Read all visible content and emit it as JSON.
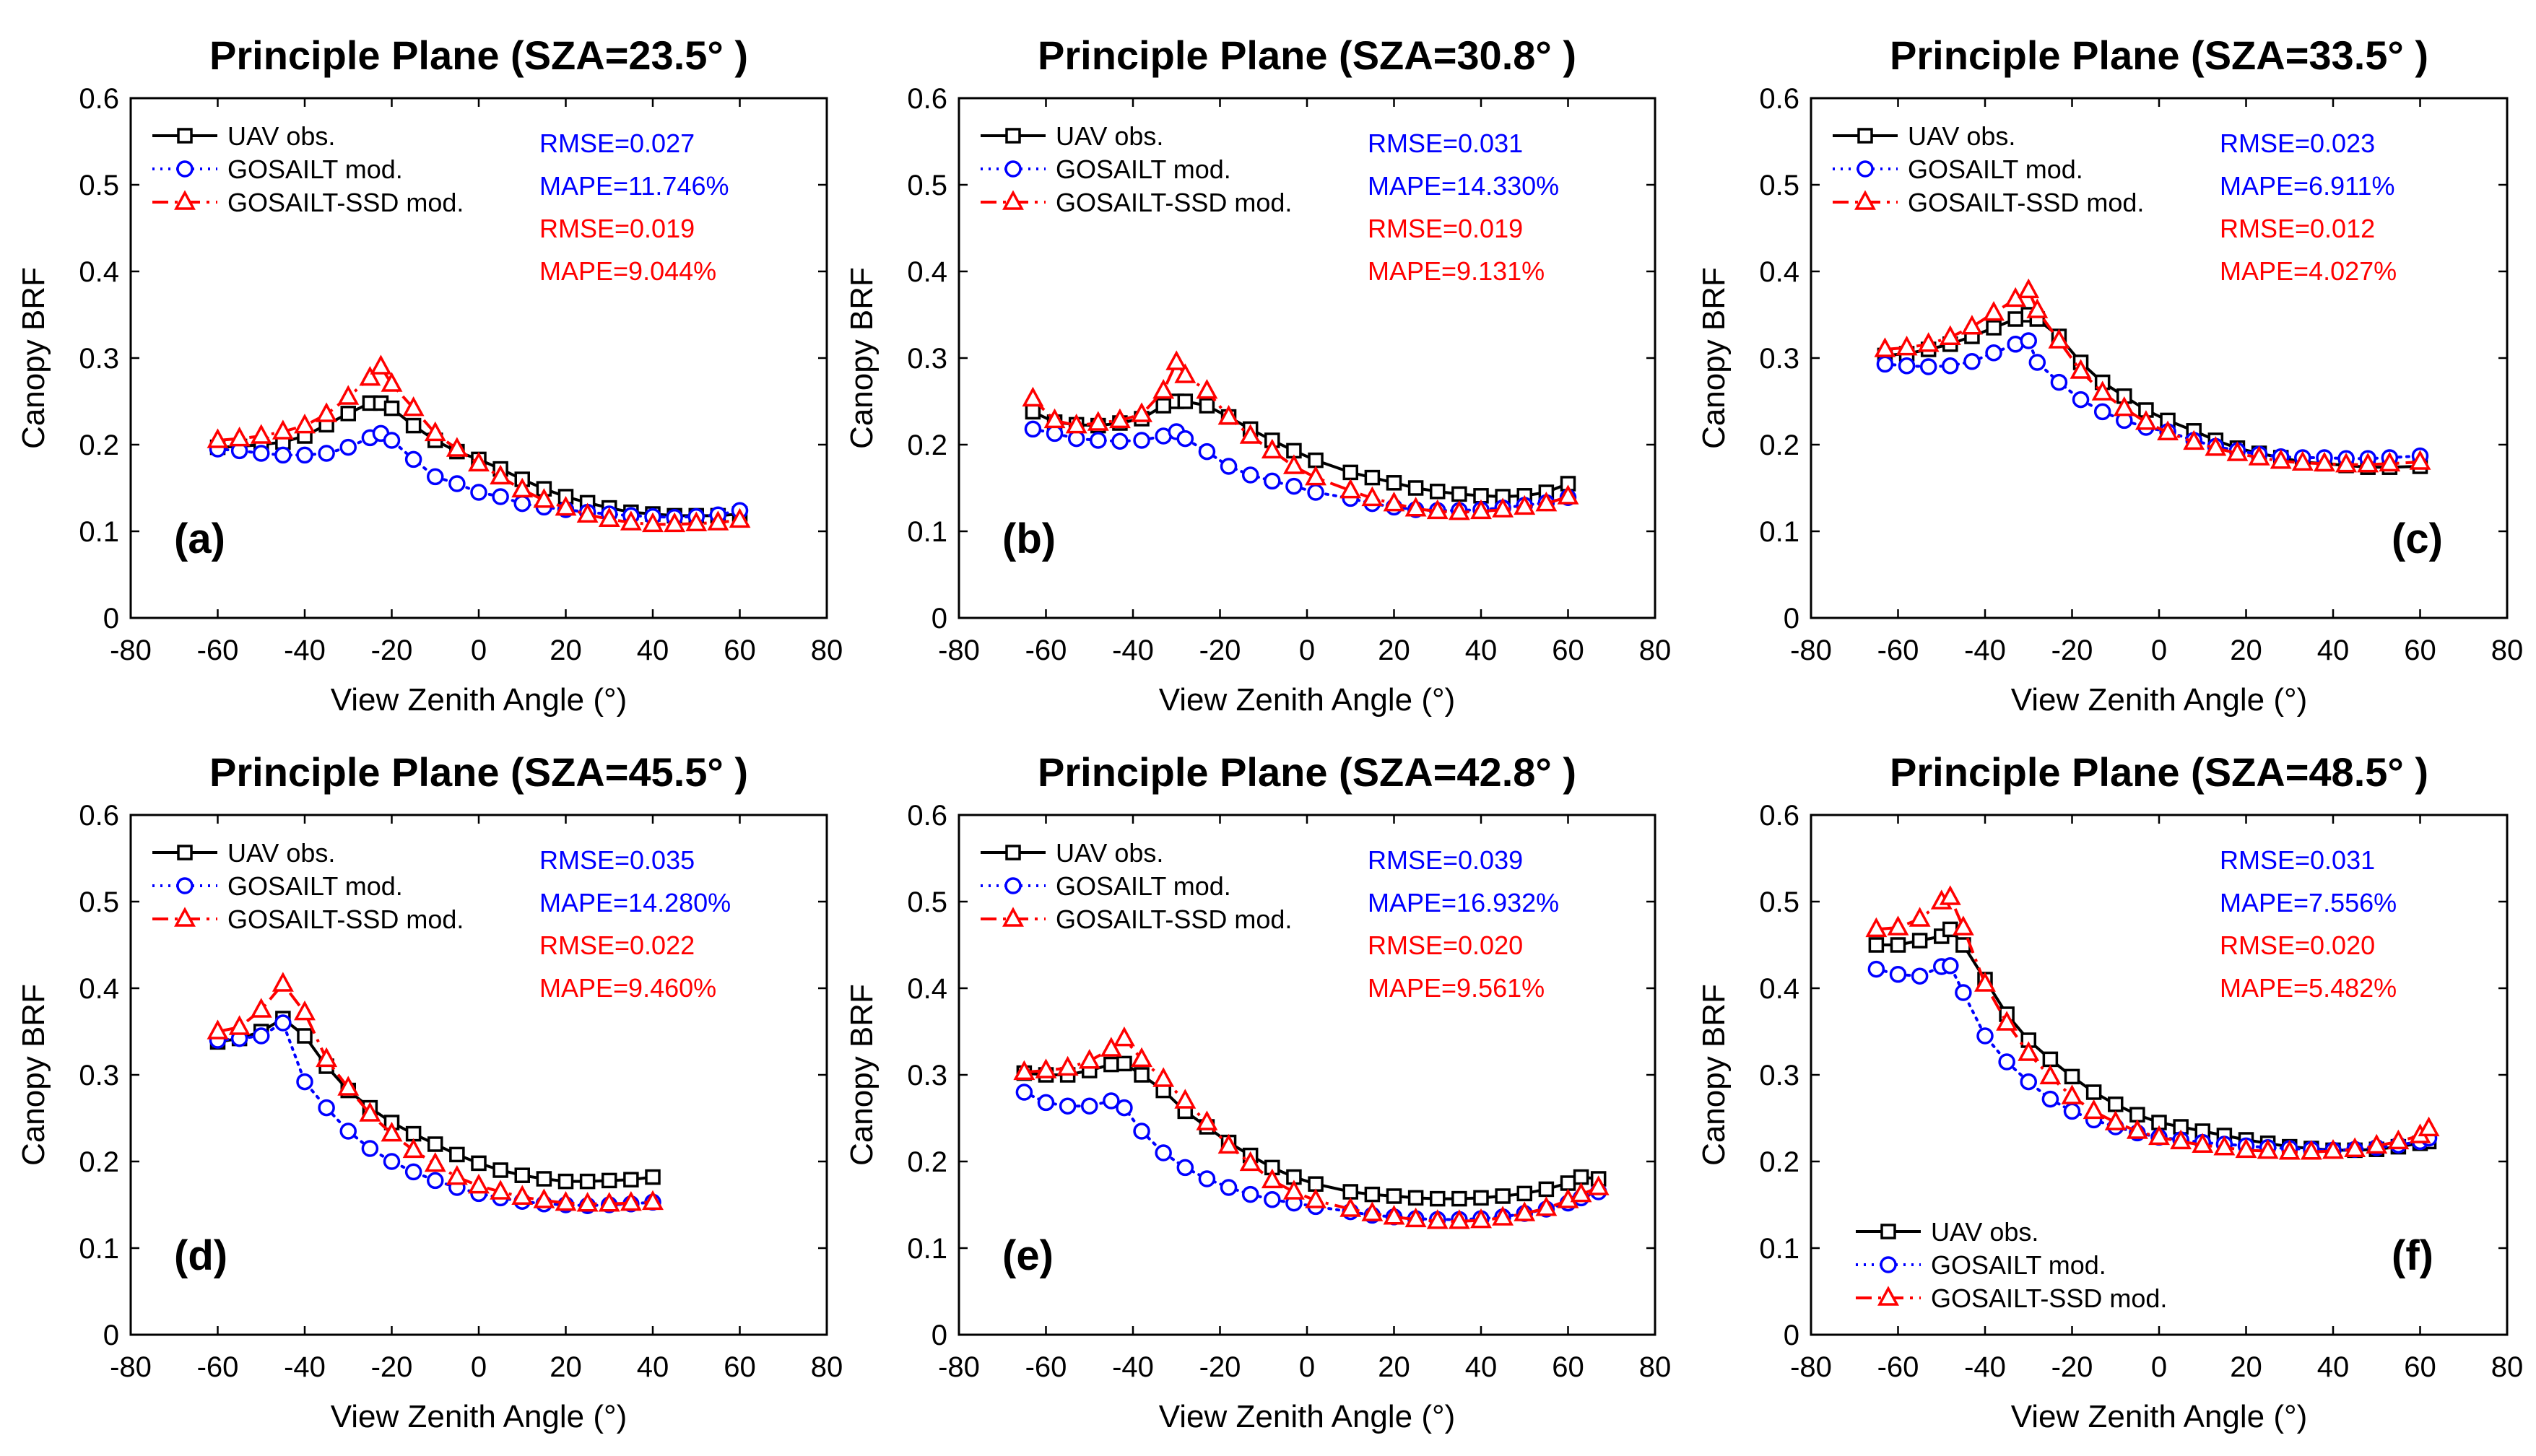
{
  "figure": {
    "series_styles": [
      {
        "key": "obs",
        "color": "#000000",
        "marker": "square",
        "dash": ""
      },
      {
        "key": "gos",
        "color": "#0000ff",
        "marker": "circle",
        "dash": "3 8"
      },
      {
        "key": "ssd",
        "color": "#ff0000",
        "marker": "triangle",
        "dash": "22 9 4 9"
      }
    ]
  },
  "chart_data": [
    {
      "type": "line",
      "panel": "(a)",
      "title": "Principle Plane (SZA=23.5° )",
      "xlabel": "View Zenith Angle (°)",
      "ylabel": "Canopy BRF",
      "xlim": [
        -80,
        80
      ],
      "ylim": [
        0,
        0.6
      ],
      "xticks": [
        "-80",
        "-60",
        "-40",
        "-20",
        "0",
        "20",
        "40",
        "60",
        "80"
      ],
      "yticks": [
        "0",
        "0.1",
        "0.2",
        "0.3",
        "0.4",
        "0.5",
        "0.6"
      ],
      "legend": [
        "UAV obs.",
        "GOSAILT mod.",
        "GOSAILT-SSD mod."
      ],
      "legend_position": "top-left",
      "stats": [
        {
          "text": "RMSE=0.027",
          "color": "#0000ff"
        },
        {
          "text": "MAPE=11.746%",
          "color": "#0000ff"
        },
        {
          "text": "RMSE=0.019",
          "color": "#ff0000"
        },
        {
          "text": "MAPE=9.044%",
          "color": "#ff0000"
        }
      ],
      "x": [
        -60,
        -55,
        -50,
        -45,
        -40,
        -35,
        -30,
        -25,
        -22.5,
        -20,
        -15,
        -10,
        -5,
        0,
        5,
        10,
        15,
        20,
        25,
        30,
        35,
        40,
        45,
        50,
        55,
        60
      ],
      "series": [
        {
          "name": "UAV obs.",
          "values": [
            0.197,
            0.198,
            0.2,
            0.203,
            0.21,
            0.223,
            0.236,
            0.248,
            0.248,
            0.242,
            0.222,
            0.205,
            0.192,
            0.183,
            0.172,
            0.16,
            0.149,
            0.14,
            0.133,
            0.127,
            0.122,
            0.12,
            0.118,
            0.118,
            0.118,
            0.12
          ]
        },
        {
          "name": "GOSAILT mod.",
          "values": [
            0.195,
            0.193,
            0.19,
            0.188,
            0.188,
            0.19,
            0.197,
            0.208,
            0.213,
            0.205,
            0.183,
            0.163,
            0.155,
            0.145,
            0.14,
            0.132,
            0.128,
            0.125,
            0.122,
            0.12,
            0.118,
            0.117,
            0.116,
            0.117,
            0.119,
            0.124
          ]
        },
        {
          "name": "GOSAILT-SSD mod.",
          "values": [
            0.205,
            0.207,
            0.21,
            0.215,
            0.222,
            0.235,
            0.255,
            0.277,
            0.29,
            0.27,
            0.242,
            0.213,
            0.195,
            0.178,
            0.163,
            0.148,
            0.136,
            0.127,
            0.119,
            0.114,
            0.11,
            0.108,
            0.108,
            0.109,
            0.11,
            0.113
          ]
        }
      ]
    },
    {
      "type": "line",
      "panel": "(b)",
      "title": "Principle Plane (SZA=30.8° )",
      "xlabel": "View Zenith Angle (°)",
      "ylabel": "Canopy BRF",
      "xlim": [
        -80,
        80
      ],
      "ylim": [
        0,
        0.6
      ],
      "xticks": [
        "-80",
        "-60",
        "-40",
        "-20",
        "0",
        "20",
        "40",
        "60",
        "80"
      ],
      "yticks": [
        "0",
        "0.1",
        "0.2",
        "0.3",
        "0.4",
        "0.5",
        "0.6"
      ],
      "legend": [
        "UAV obs.",
        "GOSAILT mod.",
        "GOSAILT-SSD mod."
      ],
      "legend_position": "top-left",
      "stats": [
        {
          "text": "RMSE=0.031",
          "color": "#0000ff"
        },
        {
          "text": "MAPE=14.330%",
          "color": "#0000ff"
        },
        {
          "text": "RMSE=0.019",
          "color": "#ff0000"
        },
        {
          "text": "MAPE=9.131%",
          "color": "#ff0000"
        }
      ],
      "x": [
        -63,
        -58,
        -53,
        -48,
        -43,
        -38,
        -33,
        -30,
        -28,
        -23,
        -18,
        -13,
        -8,
        -3,
        2,
        10,
        15,
        20,
        25,
        30,
        35,
        40,
        45,
        50,
        55,
        60
      ],
      "series": [
        {
          "name": "UAV obs.",
          "values": [
            0.238,
            0.226,
            0.223,
            0.222,
            0.225,
            0.23,
            0.245,
            0.25,
            0.25,
            0.245,
            0.232,
            0.218,
            0.205,
            0.193,
            0.182,
            0.168,
            0.162,
            0.156,
            0.15,
            0.146,
            0.143,
            0.141,
            0.14,
            0.141,
            0.145,
            0.155
          ]
        },
        {
          "name": "GOSAILT mod.",
          "values": [
            0.218,
            0.213,
            0.207,
            0.205,
            0.204,
            0.205,
            0.21,
            0.215,
            0.207,
            0.192,
            0.175,
            0.165,
            0.158,
            0.152,
            0.145,
            0.138,
            0.132,
            0.128,
            0.125,
            0.124,
            0.124,
            0.125,
            0.127,
            0.13,
            0.133,
            0.139
          ]
        },
        {
          "name": "GOSAILT-SSD mod.",
          "values": [
            0.253,
            0.228,
            0.222,
            0.225,
            0.228,
            0.235,
            0.262,
            0.295,
            0.28,
            0.262,
            0.232,
            0.21,
            0.193,
            0.175,
            0.162,
            0.147,
            0.138,
            0.132,
            0.126,
            0.123,
            0.122,
            0.123,
            0.125,
            0.128,
            0.132,
            0.14
          ]
        }
      ]
    },
    {
      "type": "line",
      "panel": "(c)",
      "title": "Principle Plane (SZA=33.5° )",
      "xlabel": "View Zenith Angle (°)",
      "ylabel": "Canopy BRF",
      "xlim": [
        -80,
        80
      ],
      "ylim": [
        0,
        0.6
      ],
      "xticks": [
        "-80",
        "-60",
        "-40",
        "-20",
        "0",
        "20",
        "40",
        "60",
        "80"
      ],
      "yticks": [
        "0",
        "0.1",
        "0.2",
        "0.3",
        "0.4",
        "0.5",
        "0.6"
      ],
      "legend": [
        "UAV obs.",
        "GOSAILT mod.",
        "GOSAILT-SSD mod."
      ],
      "legend_position": "top-left",
      "stats": [
        {
          "text": "RMSE=0.023",
          "color": "#0000ff"
        },
        {
          "text": "MAPE=6.911%",
          "color": "#0000ff"
        },
        {
          "text": "RMSE=0.012",
          "color": "#ff0000"
        },
        {
          "text": "MAPE=4.027%",
          "color": "#ff0000"
        }
      ],
      "x": [
        -63,
        -58,
        -53,
        -48,
        -43,
        -38,
        -33,
        -30,
        -28,
        -23,
        -18,
        -13,
        -8,
        -3,
        2,
        8,
        13,
        18,
        23,
        28,
        33,
        38,
        43,
        48,
        53,
        60
      ],
      "series": [
        {
          "name": "UAV obs.",
          "values": [
            0.303,
            0.305,
            0.31,
            0.316,
            0.325,
            0.335,
            0.345,
            0.35,
            0.345,
            0.325,
            0.295,
            0.272,
            0.256,
            0.24,
            0.228,
            0.216,
            0.205,
            0.196,
            0.19,
            0.185,
            0.18,
            0.178,
            0.176,
            0.174,
            0.174,
            0.175
          ]
        },
        {
          "name": "GOSAILT mod.",
          "values": [
            0.293,
            0.291,
            0.29,
            0.291,
            0.296,
            0.306,
            0.316,
            0.32,
            0.295,
            0.272,
            0.252,
            0.238,
            0.228,
            0.22,
            0.215,
            0.205,
            0.198,
            0.193,
            0.189,
            0.186,
            0.185,
            0.185,
            0.184,
            0.184,
            0.185,
            0.187
          ]
        },
        {
          "name": "GOSAILT-SSD mod.",
          "values": [
            0.31,
            0.312,
            0.316,
            0.324,
            0.336,
            0.352,
            0.368,
            0.378,
            0.355,
            0.32,
            0.285,
            0.26,
            0.242,
            0.226,
            0.214,
            0.203,
            0.196,
            0.19,
            0.185,
            0.181,
            0.179,
            0.178,
            0.177,
            0.177,
            0.178,
            0.18
          ]
        }
      ]
    },
    {
      "type": "line",
      "panel": "(d)",
      "title": "Principle Plane (SZA=45.5° )",
      "xlabel": "View Zenith Angle (°)",
      "ylabel": "Canopy BRF",
      "xlim": [
        -80,
        80
      ],
      "ylim": [
        0,
        0.6
      ],
      "xticks": [
        "-80",
        "-60",
        "-40",
        "-20",
        "0",
        "20",
        "40",
        "60",
        "80"
      ],
      "yticks": [
        "0",
        "0.1",
        "0.2",
        "0.3",
        "0.4",
        "0.5",
        "0.6"
      ],
      "legend": [
        "UAV obs.",
        "GOSAILT mod.",
        "GOSAILT-SSD mod."
      ],
      "legend_position": "top-left",
      "stats": [
        {
          "text": "RMSE=0.035",
          "color": "#0000ff"
        },
        {
          "text": "MAPE=14.280%",
          "color": "#0000ff"
        },
        {
          "text": "RMSE=0.022",
          "color": "#ff0000"
        },
        {
          "text": "MAPE=9.460%",
          "color": "#ff0000"
        }
      ],
      "x": [
        -60,
        -55,
        -50,
        -45,
        -40,
        -35,
        -30,
        -25,
        -20,
        -15,
        -10,
        -5,
        0,
        5,
        10,
        15,
        20,
        25,
        30,
        35,
        40
      ],
      "series": [
        {
          "name": "UAV obs.",
          "values": [
            0.338,
            0.342,
            0.35,
            0.365,
            0.345,
            0.31,
            0.282,
            0.262,
            0.245,
            0.232,
            0.22,
            0.208,
            0.198,
            0.19,
            0.184,
            0.18,
            0.177,
            0.177,
            0.178,
            0.179,
            0.182
          ]
        },
        {
          "name": "GOSAILT mod.",
          "values": [
            0.34,
            0.342,
            0.345,
            0.36,
            0.292,
            0.262,
            0.235,
            0.215,
            0.2,
            0.188,
            0.178,
            0.17,
            0.163,
            0.158,
            0.154,
            0.151,
            0.15,
            0.149,
            0.15,
            0.151,
            0.153
          ]
        },
        {
          "name": "GOSAILT-SSD mod.",
          "values": [
            0.35,
            0.355,
            0.375,
            0.405,
            0.372,
            0.318,
            0.285,
            0.255,
            0.232,
            0.213,
            0.197,
            0.182,
            0.172,
            0.165,
            0.159,
            0.155,
            0.152,
            0.151,
            0.151,
            0.152,
            0.153
          ]
        }
      ]
    },
    {
      "type": "line",
      "panel": "(e)",
      "title": "Principle Plane (SZA=42.8° )",
      "xlabel": "View Zenith Angle (°)",
      "ylabel": "Canopy BRF",
      "xlim": [
        -80,
        80
      ],
      "ylim": [
        0,
        0.6
      ],
      "xticks": [
        "-80",
        "-60",
        "-40",
        "-20",
        "0",
        "20",
        "40",
        "60",
        "80"
      ],
      "yticks": [
        "0",
        "0.1",
        "0.2",
        "0.3",
        "0.4",
        "0.5",
        "0.6"
      ],
      "legend": [
        "UAV obs.",
        "GOSAILT mod.",
        "GOSAILT-SSD mod."
      ],
      "legend_position": "top-left",
      "stats": [
        {
          "text": "RMSE=0.039",
          "color": "#0000ff"
        },
        {
          "text": "MAPE=16.932%",
          "color": "#0000ff"
        },
        {
          "text": "RMSE=0.020",
          "color": "#ff0000"
        },
        {
          "text": "MAPE=9.561%",
          "color": "#ff0000"
        }
      ],
      "x": [
        -65,
        -60,
        -55,
        -50,
        -45,
        -42,
        -38,
        -33,
        -28,
        -23,
        -18,
        -13,
        -8,
        -3,
        2,
        10,
        15,
        20,
        25,
        30,
        35,
        40,
        45,
        50,
        55,
        60,
        63,
        67
      ],
      "series": [
        {
          "name": "UAV obs.",
          "values": [
            0.302,
            0.3,
            0.3,
            0.305,
            0.312,
            0.313,
            0.3,
            0.282,
            0.258,
            0.24,
            0.222,
            0.207,
            0.193,
            0.182,
            0.174,
            0.165,
            0.162,
            0.16,
            0.158,
            0.157,
            0.157,
            0.158,
            0.16,
            0.163,
            0.168,
            0.175,
            0.182,
            0.18
          ]
        },
        {
          "name": "GOSAILT mod.",
          "values": [
            0.28,
            0.268,
            0.264,
            0.264,
            0.27,
            0.262,
            0.235,
            0.21,
            0.193,
            0.18,
            0.17,
            0.162,
            0.156,
            0.152,
            0.148,
            0.142,
            0.138,
            0.136,
            0.134,
            0.133,
            0.133,
            0.134,
            0.136,
            0.14,
            0.145,
            0.152,
            0.158,
            0.165
          ]
        },
        {
          "name": "GOSAILT-SSD mod.",
          "values": [
            0.303,
            0.305,
            0.308,
            0.316,
            0.33,
            0.342,
            0.318,
            0.295,
            0.27,
            0.245,
            0.218,
            0.198,
            0.178,
            0.165,
            0.155,
            0.145,
            0.14,
            0.136,
            0.133,
            0.131,
            0.131,
            0.132,
            0.135,
            0.14,
            0.146,
            0.155,
            0.162,
            0.17
          ]
        }
      ]
    },
    {
      "type": "line",
      "panel": "(f)",
      "title": "Principle Plane (SZA=48.5° )",
      "xlabel": "View Zenith Angle (°)",
      "ylabel": "Canopy BRF",
      "xlim": [
        -80,
        80
      ],
      "ylim": [
        0,
        0.6
      ],
      "xticks": [
        "-80",
        "-60",
        "-40",
        "-20",
        "0",
        "20",
        "40",
        "60",
        "80"
      ],
      "yticks": [
        "0",
        "0.1",
        "0.2",
        "0.3",
        "0.4",
        "0.5",
        "0.6"
      ],
      "legend": [
        "UAV obs.",
        "GOSAILT mod.",
        "GOSAILT-SSD mod."
      ],
      "legend_position": "bottom-left",
      "stats": [
        {
          "text": "RMSE=0.031",
          "color": "#0000ff"
        },
        {
          "text": "MAPE=7.556%",
          "color": "#0000ff"
        },
        {
          "text": "RMSE=0.020",
          "color": "#ff0000"
        },
        {
          "text": "MAPE=5.482%",
          "color": "#ff0000"
        }
      ],
      "x": [
        -65,
        -60,
        -55,
        -50,
        -48,
        -45,
        -40,
        -35,
        -30,
        -25,
        -20,
        -15,
        -10,
        -5,
        0,
        5,
        10,
        15,
        20,
        25,
        30,
        35,
        40,
        45,
        50,
        55,
        60,
        62
      ],
      "series": [
        {
          "name": "UAV obs.",
          "values": [
            0.45,
            0.45,
            0.455,
            0.46,
            0.468,
            0.45,
            0.41,
            0.37,
            0.34,
            0.318,
            0.298,
            0.28,
            0.266,
            0.254,
            0.245,
            0.24,
            0.235,
            0.23,
            0.225,
            0.221,
            0.217,
            0.215,
            0.213,
            0.213,
            0.214,
            0.217,
            0.221,
            0.223
          ]
        },
        {
          "name": "GOSAILT mod.",
          "values": [
            0.422,
            0.416,
            0.414,
            0.425,
            0.426,
            0.395,
            0.345,
            0.315,
            0.292,
            0.272,
            0.258,
            0.248,
            0.24,
            0.233,
            0.228,
            0.225,
            0.222,
            0.22,
            0.218,
            0.216,
            0.215,
            0.214,
            0.213,
            0.214,
            0.216,
            0.219,
            0.223,
            0.227
          ]
        },
        {
          "name": "GOSAILT-SSD mod.",
          "values": [
            0.468,
            0.47,
            0.48,
            0.5,
            0.505,
            0.47,
            0.405,
            0.36,
            0.325,
            0.298,
            0.275,
            0.258,
            0.245,
            0.235,
            0.228,
            0.223,
            0.219,
            0.216,
            0.213,
            0.212,
            0.211,
            0.211,
            0.212,
            0.214,
            0.218,
            0.223,
            0.23,
            0.238
          ]
        }
      ]
    }
  ]
}
